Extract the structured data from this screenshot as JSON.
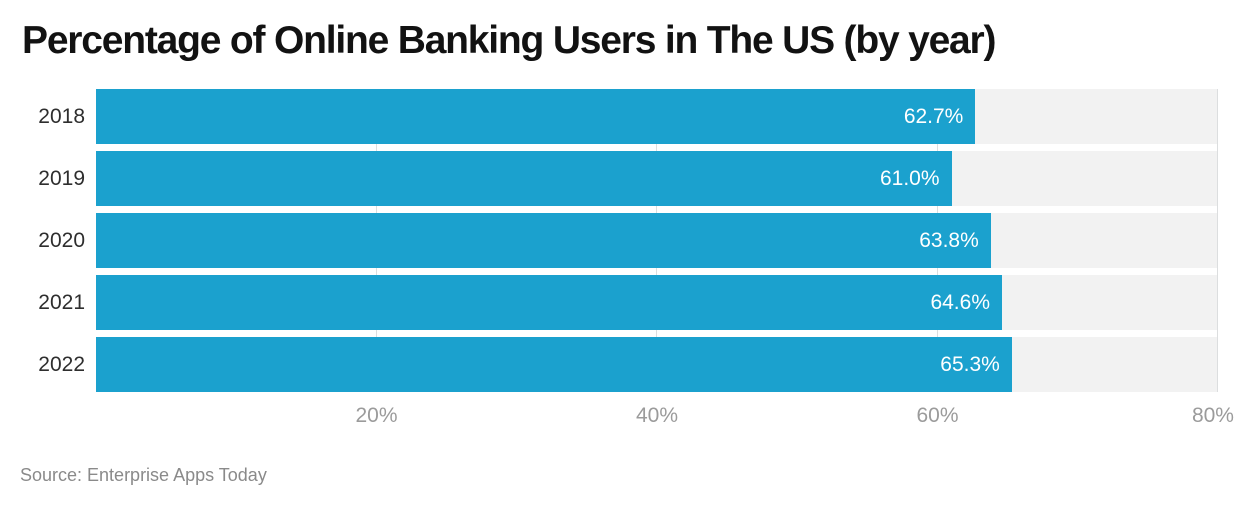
{
  "chart_data": {
    "type": "bar",
    "orientation": "horizontal",
    "title": "Percentage of Online Banking Users in The US (by year)",
    "categories": [
      "2018",
      "2019",
      "2020",
      "2021",
      "2022"
    ],
    "values": [
      62.7,
      61.0,
      63.8,
      64.6,
      65.3
    ],
    "value_labels": [
      "62.7%",
      "61.0%",
      "63.8%",
      "64.6%",
      "65.3%"
    ],
    "xlabel": "",
    "ylabel": "",
    "xlim": [
      0,
      80
    ],
    "xticks": [
      {
        "value": 20,
        "label": "20%"
      },
      {
        "value": 40,
        "label": "40%"
      },
      {
        "value": 60,
        "label": "60%"
      },
      {
        "value": 80,
        "label": "80%"
      }
    ],
    "grid": true,
    "legend": false
  },
  "source": "Source: Enterprise Apps Today",
  "colors": {
    "bar": "#1BA1CE",
    "track": "#F2F2F2",
    "gridline": "#DCDEDF",
    "tick_label": "#9B9B9B",
    "category_label": "#2E2E2E",
    "value_label": "#FFFFFF",
    "title": "#121212",
    "source_text": "#8A8A8A",
    "background": "#FFFFFF"
  }
}
